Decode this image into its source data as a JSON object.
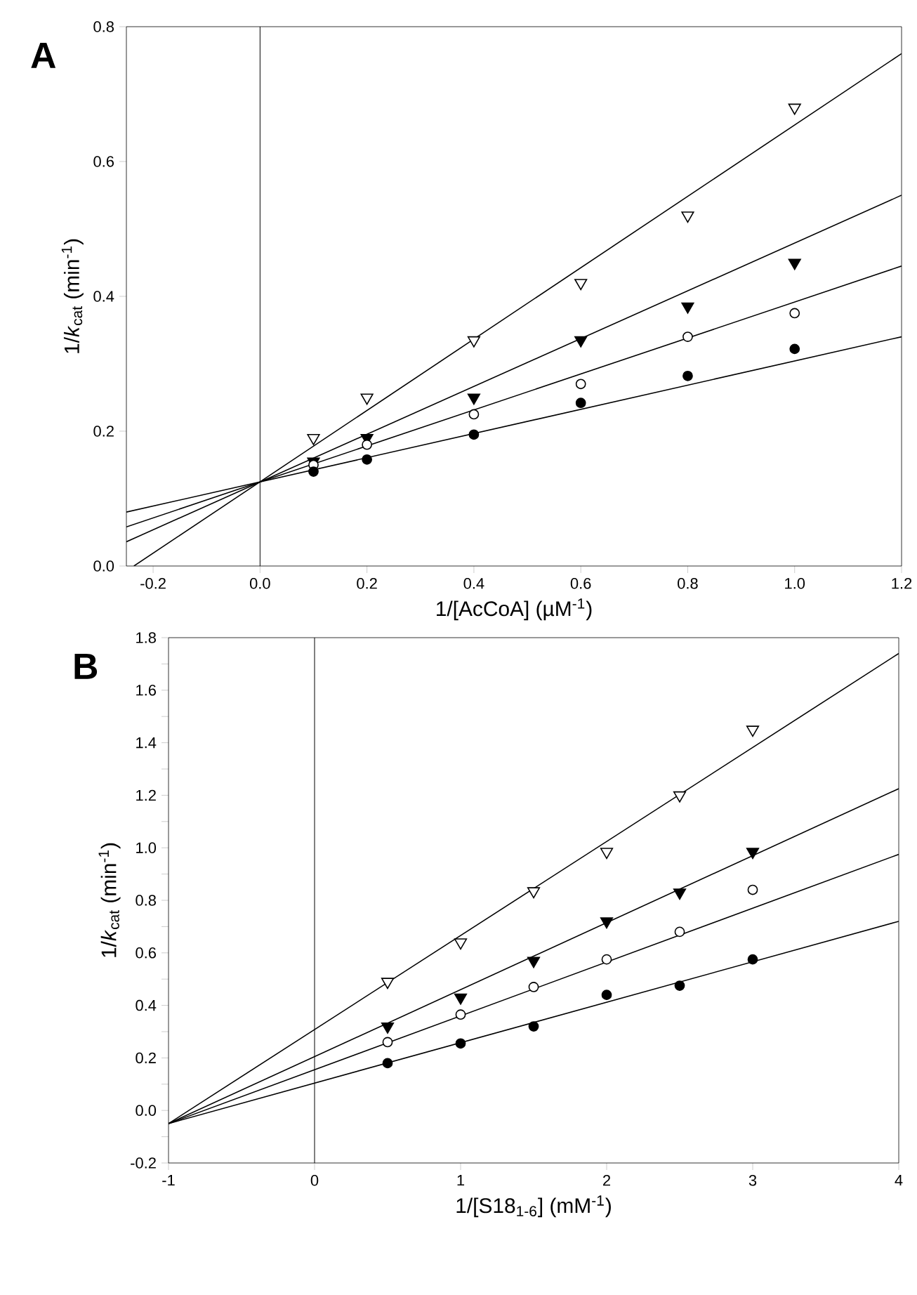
{
  "chart_data": [
    {
      "type": "scatter",
      "xlabel": "1/[AcCoA] (µM$^{-1}$)",
      "ylabel": "1/*k*$_{cat}$ (min$^{-1}$)",
      "annotations": [
        "A"
      ],
      "xlim": [
        -0.25,
        1.2
      ],
      "ylim": [
        0,
        0.8
      ],
      "xticks": [
        -0.2,
        {
          "value": 0,
          "label": "0.0"
        },
        0.2,
        0.4,
        0.6,
        0.8,
        {
          "value": 1,
          "label": "1.0"
        },
        1.2
      ],
      "yticks": [
        {
          "value": 0,
          "label": "0.0"
        },
        0.2,
        0.4,
        0.6,
        0.8
      ],
      "ref_lines": [
        {
          "axis": "x",
          "value": 0
        }
      ],
      "series": [
        {
          "marker": "triangle",
          "color": "#ffffff",
          "x": [
            0.1,
            0.2,
            0.4,
            0.6,
            0.8,
            1.0
          ],
          "values": [
            0.19,
            0.25,
            0.335,
            0.42,
            0.52,
            0.68
          ]
        },
        {
          "marker": "triangle",
          "color": "#000000",
          "x": [
            0.1,
            0.2,
            0.4,
            0.6,
            0.8,
            1.0
          ],
          "values": [
            0.155,
            0.19,
            0.25,
            0.335,
            0.385,
            0.45
          ]
        },
        {
          "marker": "circle",
          "color": "#ffffff",
          "x": [
            0.1,
            0.2,
            0.4,
            0.6,
            0.8,
            1.0
          ],
          "values": [
            0.15,
            0.18,
            0.225,
            0.27,
            0.34,
            0.375
          ]
        },
        {
          "marker": "circle",
          "color": "#000000",
          "x": [
            0.1,
            0.2,
            0.4,
            0.6,
            0.8,
            1.0
          ],
          "values": [
            0.14,
            0.158,
            0.195,
            0.242,
            0.282,
            0.322
          ]
        },
        {
          "type": "line",
          "marker": "none",
          "line_style": "solid",
          "color": "#000000",
          "x": [
            -0.236,
            1.2
          ],
          "values": [
            0,
            0.76
          ]
        },
        {
          "type": "line",
          "marker": "none",
          "line_style": "solid",
          "color": "#000000",
          "x": [
            -0.25,
            1.2
          ],
          "values": [
            0.036,
            0.55
          ]
        },
        {
          "type": "line",
          "marker": "none",
          "line_style": "solid",
          "color": "#000000",
          "x": [
            -0.25,
            1.2
          ],
          "values": [
            0.058,
            0.445
          ]
        },
        {
          "type": "line",
          "marker": "none",
          "line_style": "solid",
          "color": "#000000",
          "x": [
            -0.25,
            1.2
          ],
          "values": [
            0.08,
            0.34
          ]
        }
      ]
    },
    {
      "type": "scatter",
      "xlabel": "1/[S18$_{1-6}$] (mM$^{-1}$)",
      "ylabel": "1/*k*$_{cat}$ (min$^{-1}$)",
      "annotations": [
        "B"
      ],
      "xlim": [
        -1,
        4
      ],
      "ylim": [
        -0.2,
        1.8
      ],
      "xticks": [
        -1,
        0,
        1,
        2,
        3,
        4
      ],
      "yticks": [
        -0.2,
        {
          "value": -0.1,
          "label": null
        },
        {
          "value": 0,
          "label": "0.0"
        },
        {
          "value": 0.1,
          "label": null
        },
        0.2,
        {
          "value": 0.3,
          "label": null
        },
        0.4,
        {
          "value": 0.5,
          "label": null
        },
        0.6,
        {
          "value": 0.7,
          "label": null
        },
        0.8,
        {
          "value": 0.9,
          "label": null
        },
        {
          "value": 1,
          "label": "1.0"
        },
        {
          "value": 1.1,
          "label": null
        },
        1.2,
        {
          "value": 1.3,
          "label": null
        },
        1.4,
        {
          "value": 1.5,
          "label": null
        },
        1.6,
        {
          "value": 1.7,
          "label": null
        },
        1.8
      ],
      "ref_lines": [
        {
          "axis": "x",
          "value": 0
        }
      ],
      "series": [
        {
          "marker": "triangle",
          "color": "#ffffff",
          "x": [
            0.5,
            1,
            1.5,
            2,
            2.5,
            3
          ],
          "values": [
            0.49,
            0.64,
            0.835,
            0.985,
            1.2,
            1.45
          ]
        },
        {
          "marker": "triangle",
          "color": "#000000",
          "x": [
            0.5,
            1,
            1.5,
            2,
            2.5,
            3
          ],
          "values": [
            0.32,
            0.43,
            0.57,
            0.72,
            0.83,
            0.985
          ]
        },
        {
          "marker": "circle",
          "color": "#ffffff",
          "x": [
            0.5,
            1,
            1.5,
            2,
            2.5,
            3
          ],
          "values": [
            0.26,
            0.365,
            0.47,
            0.575,
            0.68,
            0.84
          ]
        },
        {
          "marker": "circle",
          "color": "#000000",
          "x": [
            0.5,
            1,
            1.5,
            2,
            2.5,
            3
          ],
          "values": [
            0.18,
            0.255,
            0.32,
            0.44,
            0.475,
            0.575
          ]
        },
        {
          "type": "line",
          "marker": "none",
          "line_style": "solid",
          "color": "#000000",
          "x": [
            -1,
            4
          ],
          "values": [
            -0.05,
            1.74
          ]
        },
        {
          "type": "line",
          "marker": "none",
          "line_style": "solid",
          "color": "#000000",
          "x": [
            -1,
            4
          ],
          "values": [
            -0.05,
            1.225
          ]
        },
        {
          "type": "line",
          "marker": "none",
          "line_style": "solid",
          "color": "#000000",
          "x": [
            -1,
            4
          ],
          "values": [
            -0.05,
            0.975
          ]
        },
        {
          "type": "line",
          "marker": "none",
          "line_style": "solid",
          "color": "#000000",
          "x": [
            -1,
            4
          ],
          "values": [
            -0.05,
            0.72
          ]
        }
      ]
    }
  ]
}
